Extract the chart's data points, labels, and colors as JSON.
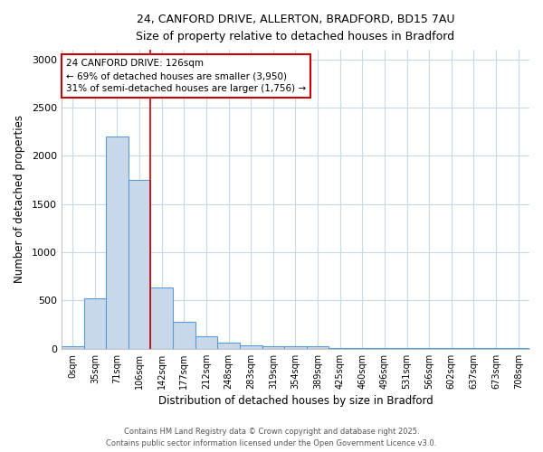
{
  "title_line1": "24, CANFORD DRIVE, ALLERTON, BRADFORD, BD15 7AU",
  "title_line2": "Size of property relative to detached houses in Bradford",
  "xlabel": "Distribution of detached houses by size in Bradford",
  "ylabel": "Number of detached properties",
  "bar_labels": [
    "0sqm",
    "35sqm",
    "71sqm",
    "106sqm",
    "142sqm",
    "177sqm",
    "212sqm",
    "248sqm",
    "283sqm",
    "319sqm",
    "354sqm",
    "389sqm",
    "425sqm",
    "460sqm",
    "496sqm",
    "531sqm",
    "566sqm",
    "602sqm",
    "637sqm",
    "673sqm",
    "708sqm"
  ],
  "bar_values": [
    25,
    525,
    2200,
    1750,
    640,
    275,
    130,
    65,
    35,
    30,
    25,
    25,
    5,
    5,
    5,
    5,
    5,
    5,
    5,
    5,
    5
  ],
  "bar_color": "#c8d8ea",
  "bar_edge_color": "#5b9bd5",
  "property_line_x": 3.5,
  "annotation_text": "24 CANFORD DRIVE: 126sqm\n← 69% of detached houses are smaller (3,950)\n31% of semi-detached houses are larger (1,756) →",
  "annotation_box_color": "#ffffff",
  "annotation_box_edge_color": "#cc0000",
  "vline_color": "#cc0000",
  "ylim": [
    0,
    3100
  ],
  "yticks": [
    0,
    500,
    1000,
    1500,
    2000,
    2500,
    3000
  ],
  "bg_color": "#ffffff",
  "grid_color": "#c8d8ea",
  "fig_color": "#ffffff",
  "footer_line1": "Contains HM Land Registry data © Crown copyright and database right 2025.",
  "footer_line2": "Contains public sector information licensed under the Open Government Licence v3.0."
}
